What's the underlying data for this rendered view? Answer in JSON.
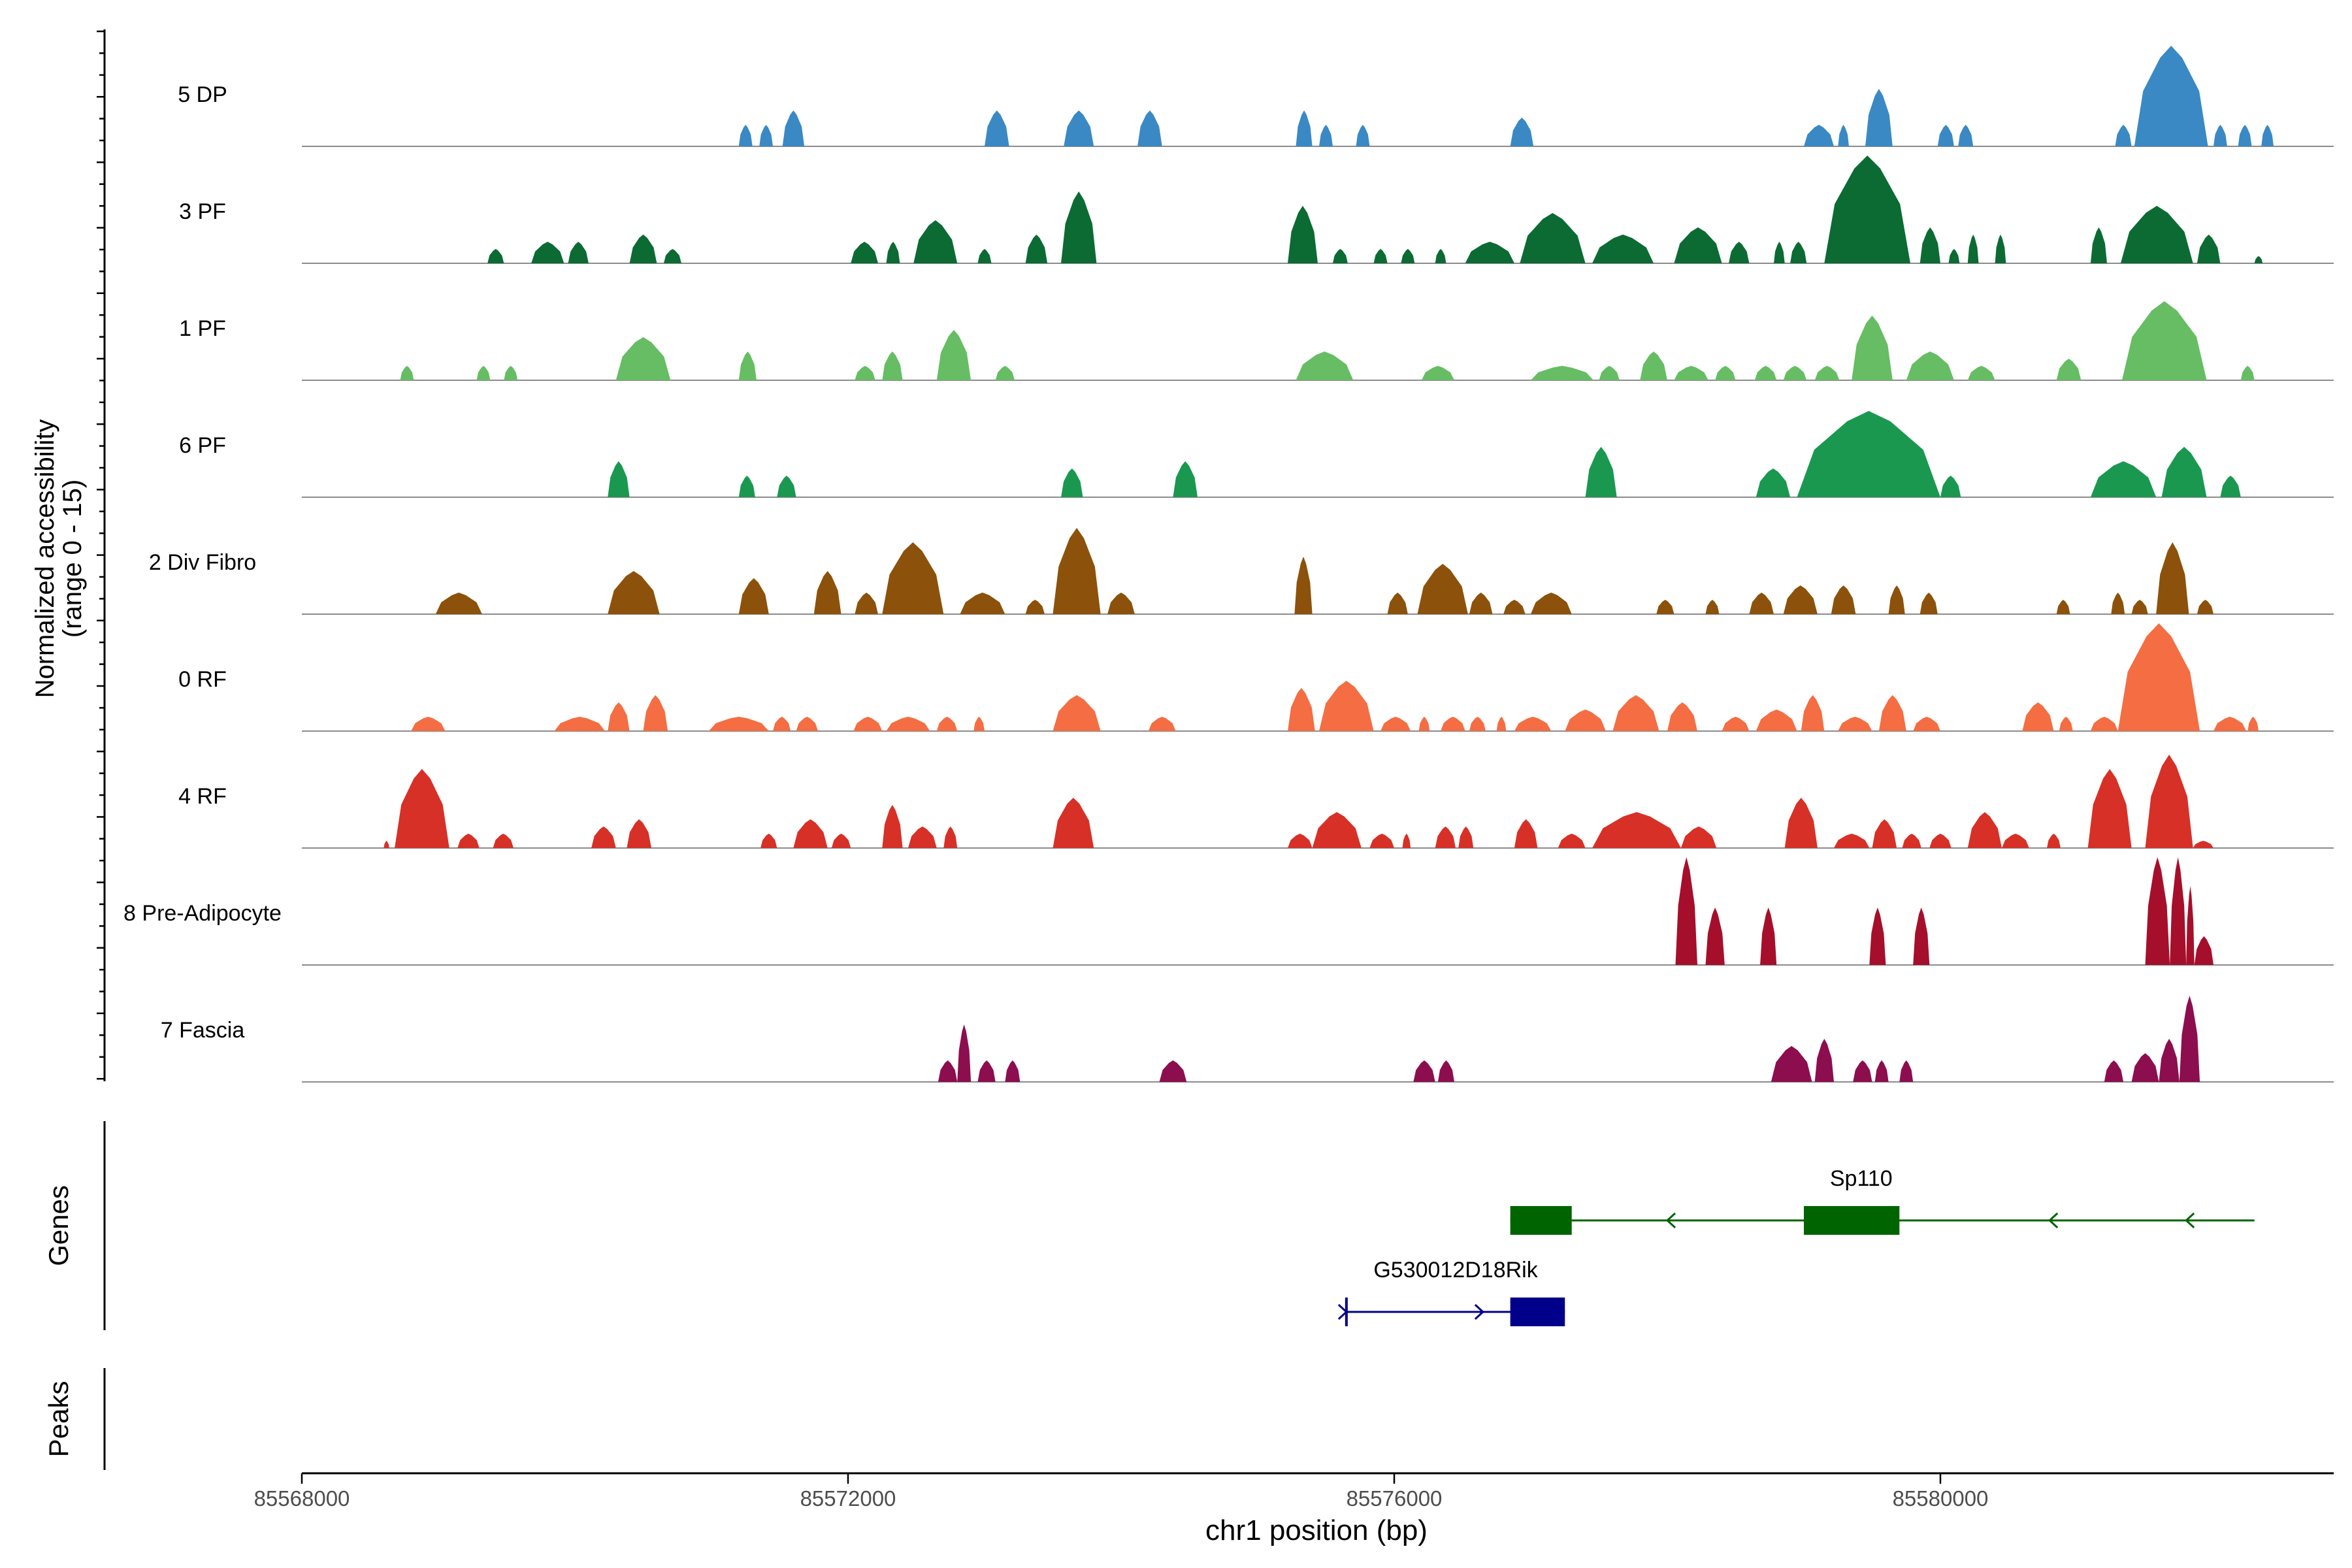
{
  "chart_data": {
    "type": "area",
    "title": "",
    "y_axis_label_line1": "Normalized accessibility",
    "y_axis_label_line2": "(range 0 - 15)",
    "x_axis_label": "chr1 position (bp)",
    "xlim": [
      85568000,
      85582900
    ],
    "ylim": [
      0,
      15
    ],
    "x_ticks": [
      85568000,
      85572000,
      85576000,
      85580000
    ],
    "x_tick_labels": [
      "85568000",
      "85572000",
      "85576000",
      "85580000"
    ],
    "tracks": [
      {
        "name": "5 DP",
        "color": "#3a89c4",
        "peaks": [
          [
            85571200,
            85571300,
            3
          ],
          [
            85571350,
            85571450,
            3
          ],
          [
            85571520,
            85571680,
            5
          ],
          [
            85573000,
            85573180,
            5
          ],
          [
            85573580,
            85573800,
            5
          ],
          [
            85574120,
            85574300,
            5
          ],
          [
            85575280,
            85575400,
            5
          ],
          [
            85575450,
            85575550,
            3
          ],
          [
            85575720,
            85575820,
            3
          ],
          [
            85576850,
            85577020,
            4
          ],
          [
            85579000,
            85579220,
            3
          ],
          [
            85579250,
            85579330,
            3
          ],
          [
            85579450,
            85579650,
            8
          ],
          [
            85579980,
            85580100,
            3
          ],
          [
            85580130,
            85580240,
            3
          ],
          [
            85581280,
            85581400,
            3
          ],
          [
            85581420,
            85581960,
            14
          ],
          [
            85582000,
            85582100,
            3
          ],
          [
            85582180,
            85582280,
            3
          ],
          [
            85582350,
            85582440,
            3
          ]
        ]
      },
      {
        "name": "3 PF",
        "color": "#0b6b33",
        "peaks": [
          [
            85569360,
            85569480,
            2
          ],
          [
            85569680,
            85569920,
            3
          ],
          [
            85569950,
            85570100,
            3
          ],
          [
            85570400,
            85570600,
            4
          ],
          [
            85570650,
            85570780,
            2
          ],
          [
            85572020,
            85572220,
            3
          ],
          [
            85572280,
            85572380,
            3
          ],
          [
            85572480,
            85572800,
            6
          ],
          [
            85572950,
            85573050,
            2
          ],
          [
            85573300,
            85573460,
            4
          ],
          [
            85573560,
            85573820,
            10
          ],
          [
            85575220,
            85575440,
            8
          ],
          [
            85575550,
            85575660,
            2
          ],
          [
            85575850,
            85575950,
            2
          ],
          [
            85576050,
            85576150,
            2
          ],
          [
            85576300,
            85576380,
            2
          ],
          [
            85576520,
            85576880,
            3
          ],
          [
            85576920,
            85577400,
            7
          ],
          [
            85577450,
            85577900,
            4
          ],
          [
            85578050,
            85578400,
            5
          ],
          [
            85578450,
            85578600,
            3
          ],
          [
            85578780,
            85578860,
            3
          ],
          [
            85578900,
            85579020,
            3
          ],
          [
            85579150,
            85579780,
            15
          ],
          [
            85579850,
            85580000,
            5
          ],
          [
            85580060,
            85580140,
            2
          ],
          [
            85580200,
            85580280,
            4
          ],
          [
            85580400,
            85580480,
            4
          ],
          [
            85581100,
            85581220,
            5
          ],
          [
            85581320,
            85581850,
            8
          ],
          [
            85581880,
            85582050,
            4
          ],
          [
            85582300,
            85582360,
            1
          ]
        ]
      },
      {
        "name": "1 PF",
        "color": "#66bd63",
        "peaks": [
          [
            85568720,
            85568820,
            2
          ],
          [
            85569280,
            85569380,
            2
          ],
          [
            85569480,
            85569580,
            2
          ],
          [
            85570300,
            85570700,
            6
          ],
          [
            85571200,
            85571330,
            4
          ],
          [
            85572050,
            85572200,
            2
          ],
          [
            85572250,
            85572400,
            4
          ],
          [
            85572650,
            85572900,
            7
          ],
          [
            85573080,
            85573220,
            2
          ],
          [
            85575280,
            85575700,
            4
          ],
          [
            85576200,
            85576440,
            2
          ],
          [
            85577000,
            85577460,
            2
          ],
          [
            85577500,
            85577650,
            2
          ],
          [
            85577800,
            85578000,
            4
          ],
          [
            85578050,
            85578300,
            2
          ],
          [
            85578350,
            85578500,
            2
          ],
          [
            85578640,
            85578800,
            2
          ],
          [
            85578850,
            85579020,
            2
          ],
          [
            85579080,
            85579260,
            2
          ],
          [
            85579350,
            85579650,
            9
          ],
          [
            85579750,
            85580100,
            4
          ],
          [
            85580200,
            85580400,
            2
          ],
          [
            85580850,
            85581030,
            3
          ],
          [
            85581330,
            85581950,
            11
          ],
          [
            85582200,
            85582300,
            2
          ]
        ]
      },
      {
        "name": "6 PF",
        "color": "#1a9850",
        "peaks": [
          [
            85570240,
            85570400,
            5
          ],
          [
            85571200,
            85571320,
            3
          ],
          [
            85571480,
            85571620,
            3
          ],
          [
            85573560,
            85573720,
            4
          ],
          [
            85574380,
            85574560,
            5
          ],
          [
            85577400,
            85577630,
            7
          ],
          [
            85578650,
            85578900,
            4
          ],
          [
            85578950,
            85580000,
            12
          ],
          [
            85580000,
            85580150,
            3
          ],
          [
            85581100,
            85581580,
            5
          ],
          [
            85581620,
            85581950,
            7
          ],
          [
            85582050,
            85582200,
            3
          ]
        ]
      },
      {
        "name": "2 Div Fibro",
        "color": "#8c510a",
        "peaks": [
          [
            85568980,
            85569320,
            3
          ],
          [
            85570240,
            85570620,
            6
          ],
          [
            85571200,
            85571420,
            5
          ],
          [
            85571750,
            85571950,
            6
          ],
          [
            85572050,
            85572220,
            3
          ],
          [
            85572250,
            85572700,
            10
          ],
          [
            85572820,
            85573150,
            3
          ],
          [
            85573300,
            85573440,
            2
          ],
          [
            85573500,
            85573850,
            12
          ],
          [
            85573900,
            85574100,
            3
          ],
          [
            85575270,
            85575400,
            8
          ],
          [
            85575950,
            85576100,
            3
          ],
          [
            85576170,
            85576540,
            7
          ],
          [
            85576550,
            85576720,
            3
          ],
          [
            85576800,
            85576960,
            2
          ],
          [
            85577000,
            85577300,
            3
          ],
          [
            85577920,
            85578050,
            2
          ],
          [
            85578280,
            85578380,
            2
          ],
          [
            85578600,
            85578780,
            3
          ],
          [
            85578850,
            85579100,
            4
          ],
          [
            85579200,
            85579380,
            4
          ],
          [
            85579620,
            85579740,
            4
          ],
          [
            85579850,
            85579980,
            3
          ],
          [
            85580850,
            85580950,
            2
          ],
          [
            85581250,
            85581350,
            3
          ],
          [
            85581400,
            85581520,
            2
          ],
          [
            85581580,
            85581820,
            10
          ],
          [
            85581880,
            85582000,
            2
          ]
        ]
      },
      {
        "name": "0 RF",
        "color": "#f46d43",
        "peaks": [
          [
            85568800,
            85569050,
            2
          ],
          [
            85569850,
            85570220,
            2
          ],
          [
            85570240,
            85570400,
            4
          ],
          [
            85570500,
            85570680,
            5
          ],
          [
            85570980,
            85571420,
            2
          ],
          [
            85571450,
            85571580,
            2
          ],
          [
            85571620,
            85571780,
            2
          ],
          [
            85572040,
            85572250,
            2
          ],
          [
            85572280,
            85572600,
            2
          ],
          [
            85572650,
            85572800,
            2
          ],
          [
            85572920,
            85573000,
            2
          ],
          [
            85573500,
            85573850,
            5
          ],
          [
            85574200,
            85574400,
            2
          ],
          [
            85575220,
            85575420,
            6
          ],
          [
            85575450,
            85575850,
            7
          ],
          [
            85575900,
            85576120,
            2
          ],
          [
            85576180,
            85576260,
            2
          ],
          [
            85576340,
            85576520,
            2
          ],
          [
            85576550,
            85576670,
            2
          ],
          [
            85576750,
            85576820,
            2
          ],
          [
            85576880,
            85577150,
            2
          ],
          [
            85577250,
            85577550,
            3
          ],
          [
            85577600,
            85577940,
            5
          ],
          [
            85578000,
            85578220,
            4
          ],
          [
            85578400,
            85578600,
            2
          ],
          [
            85578650,
            85578950,
            3
          ],
          [
            85578980,
            85579150,
            5
          ],
          [
            85579250,
            85579500,
            2
          ],
          [
            85579550,
            85579750,
            5
          ],
          [
            85579800,
            85580000,
            2
          ],
          [
            85580600,
            85580830,
            4
          ],
          [
            85580870,
            85580970,
            2
          ],
          [
            85581100,
            85581300,
            2
          ],
          [
            85581300,
            85581900,
            15
          ],
          [
            85582000,
            85582240,
            2
          ],
          [
            85582250,
            85582330,
            2
          ]
        ]
      },
      {
        "name": "4 RF",
        "color": "#d73027",
        "peaks": [
          [
            85568600,
            85568640,
            1
          ],
          [
            85568680,
            85569080,
            11
          ],
          [
            85569140,
            85569300,
            2
          ],
          [
            85569400,
            85569550,
            2
          ],
          [
            85570120,
            85570300,
            3
          ],
          [
            85570380,
            85570560,
            4
          ],
          [
            85571360,
            85571480,
            2
          ],
          [
            85571600,
            85571850,
            4
          ],
          [
            85571880,
            85572020,
            2
          ],
          [
            85572250,
            85572400,
            6
          ],
          [
            85572440,
            85572650,
            3
          ],
          [
            85572700,
            85572800,
            3
          ],
          [
            85573500,
            85573800,
            7
          ],
          [
            85575220,
            85575400,
            2
          ],
          [
            85575400,
            85575760,
            5
          ],
          [
            85575820,
            85576000,
            2
          ],
          [
            85576060,
            85576120,
            2
          ],
          [
            85576300,
            85576450,
            3
          ],
          [
            85576470,
            85576580,
            3
          ],
          [
            85576880,
            85577050,
            4
          ],
          [
            85577200,
            85577400,
            2
          ],
          [
            85577450,
            85578100,
            5
          ],
          [
            85578100,
            85578360,
            3
          ],
          [
            85578860,
            85579100,
            7
          ],
          [
            85579220,
            85579480,
            2
          ],
          [
            85579500,
            85579680,
            4
          ],
          [
            85579720,
            85579860,
            2
          ],
          [
            85579920,
            85580080,
            2
          ],
          [
            85580200,
            85580450,
            5
          ],
          [
            85580450,
            85580650,
            2
          ],
          [
            85580780,
            85580880,
            2
          ],
          [
            85581080,
            85581400,
            11
          ],
          [
            85581500,
            85581850,
            13
          ],
          [
            85581850,
            85582000,
            1
          ]
        ]
      },
      {
        "name": "8 Pre-Adipocyte",
        "color": "#a50f2b",
        "peaks": [
          [
            85578060,
            85578220,
            15
          ],
          [
            85578280,
            85578420,
            8
          ],
          [
            85578680,
            85578800,
            8
          ],
          [
            85579480,
            85579600,
            8
          ],
          [
            85579800,
            85579920,
            8
          ],
          [
            85581500,
            85581680,
            15
          ],
          [
            85581680,
            85581800,
            15
          ],
          [
            85581800,
            85581860,
            11
          ],
          [
            85581860,
            85582000,
            4
          ]
        ]
      },
      {
        "name": "7 Fascia",
        "color": "#8c0e4f",
        "peaks": [
          [
            85572660,
            85572800,
            3
          ],
          [
            85572800,
            85572900,
            8
          ],
          [
            85572950,
            85573080,
            3
          ],
          [
            85573150,
            85573260,
            3
          ],
          [
            85574280,
            85574480,
            3
          ],
          [
            85576140,
            85576300,
            3
          ],
          [
            85576320,
            85576440,
            3
          ],
          [
            85578760,
            85579060,
            5
          ],
          [
            85579080,
            85579220,
            6
          ],
          [
            85579360,
            85579500,
            3
          ],
          [
            85579520,
            85579620,
            3
          ],
          [
            85579700,
            85579800,
            3
          ],
          [
            85581200,
            85581340,
            3
          ],
          [
            85581400,
            85581600,
            4
          ],
          [
            85581600,
            85581750,
            6
          ],
          [
            85581750,
            85581900,
            12
          ]
        ]
      }
    ],
    "panels": [
      "Genes",
      "Peaks"
    ],
    "genes": [
      {
        "name": "Sp110",
        "color": "#006400",
        "strand": "-",
        "start": 85576850,
        "end": 85582300,
        "exons": [
          [
            85576850,
            85577300
          ],
          [
            85579000,
            85579700
          ]
        ],
        "arrows": [
          85578000,
          85579000,
          85580800,
          85581800
        ]
      },
      {
        "name": "G530012D18Rik",
        "color": "#00008b",
        "strand": "+",
        "start": 85575650,
        "end": 85577250,
        "exons": [
          [
            85576850,
            85577250
          ]
        ],
        "arrows": [
          85575650,
          85576650
        ]
      }
    ]
  }
}
